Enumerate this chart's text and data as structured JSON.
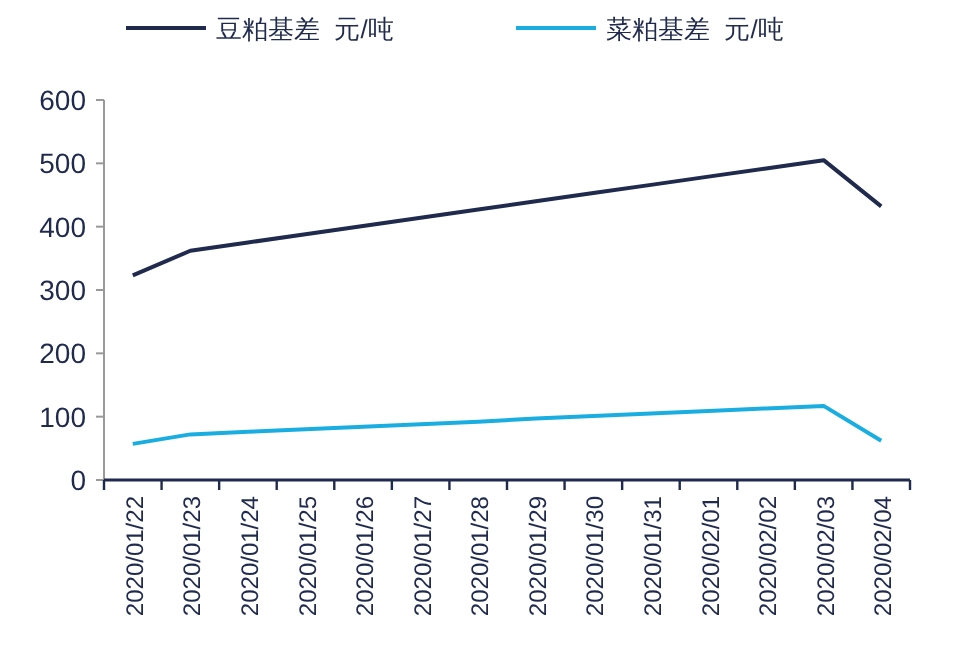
{
  "chart_data": {
    "type": "line",
    "categories": [
      "2020/01/22",
      "2020/01/23",
      "2020/01/24",
      "2020/01/25",
      "2020/01/26",
      "2020/01/27",
      "2020/01/28",
      "2020/01/29",
      "2020/01/30",
      "2020/01/31",
      "2020/02/01",
      "2020/02/02",
      "2020/02/03",
      "2020/02/04"
    ],
    "series": [
      {
        "name": "豆粕基差  元/吨",
        "color": "#1f2a4d",
        "values": [
          323,
          362,
          375,
          388,
          401,
          414,
          427,
          440,
          453,
          466,
          479,
          492,
          505,
          432
        ]
      },
      {
        "name": "菜粕基差  元/吨",
        "color": "#1aaee0",
        "values": [
          57,
          72,
          76,
          80,
          84,
          88,
          92,
          97,
          101,
          105,
          109,
          113,
          117,
          62
        ]
      }
    ],
    "ylim": [
      0,
      600
    ],
    "yticks": [
      0,
      100,
      200,
      300,
      400,
      500,
      600
    ],
    "grid": false,
    "legend": "top",
    "marker": "none",
    "line_style": "solid"
  }
}
